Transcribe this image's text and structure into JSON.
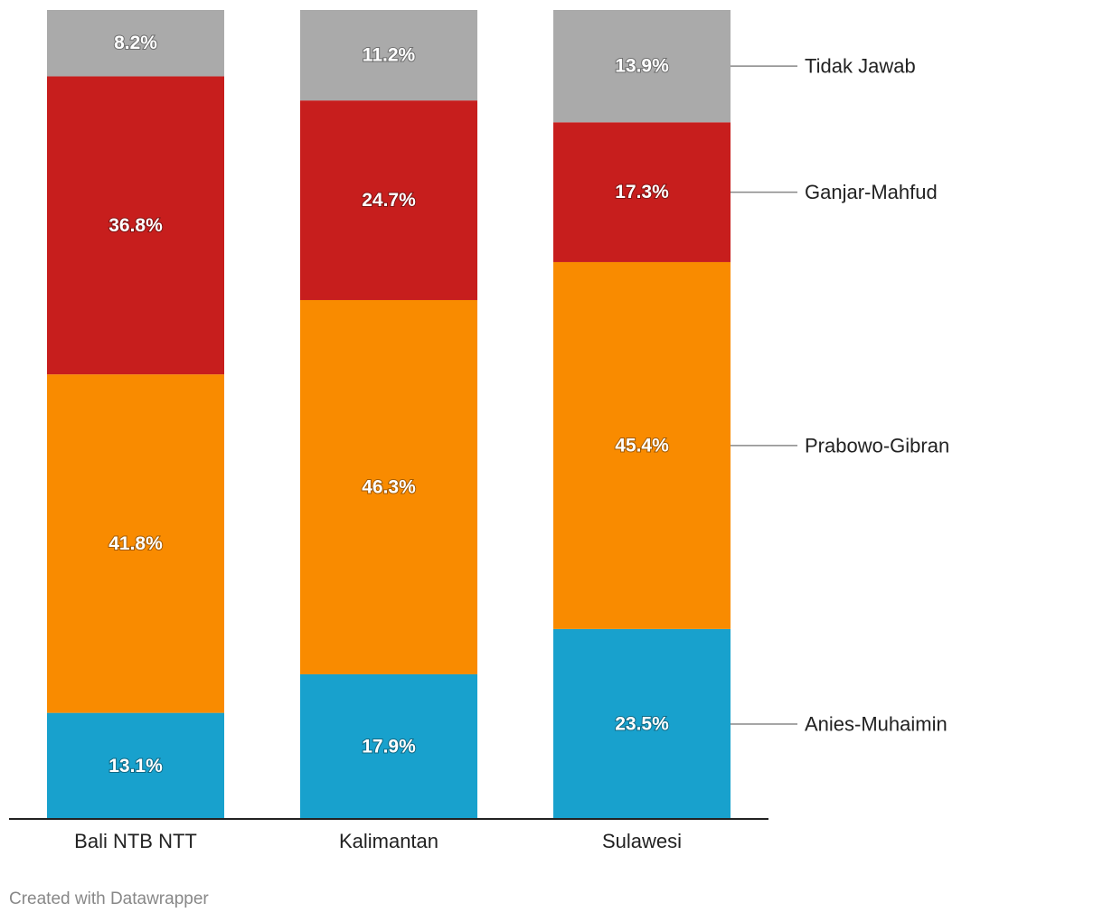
{
  "chart_data": {
    "type": "bar",
    "stacked": true,
    "orientation": "vertical",
    "categories": [
      "Bali NTB NTT",
      "Kalimantan",
      "Sulawesi"
    ],
    "series": [
      {
        "name": "Anies-Muhaimin",
        "color": "#18a1cd",
        "values": [
          13.1,
          17.9,
          23.5
        ],
        "labels": [
          "13.1%",
          "17.9%",
          "23.5%"
        ]
      },
      {
        "name": "Prabowo-Gibran",
        "color": "#f98b00",
        "values": [
          41.8,
          46.3,
          45.4
        ],
        "labels": [
          "41.8%",
          "46.3%",
          "45.4%"
        ]
      },
      {
        "name": "Ganjar-Mahfud",
        "color": "#c71e1d",
        "values": [
          36.8,
          24.7,
          17.3
        ],
        "labels": [
          "36.8%",
          "24.7%",
          "17.3%"
        ]
      },
      {
        "name": "Tidak Jawab",
        "color": "#aaaaaa",
        "values": [
          8.2,
          11.2,
          13.9
        ],
        "labels": [
          "8.2%",
          "11.2%",
          "13.9%"
        ]
      }
    ],
    "ylim": [
      0,
      100
    ],
    "legend": "right, labels aligned with segments of last bar",
    "grid": false
  },
  "footer": {
    "credit": "Created with Datawrapper"
  }
}
